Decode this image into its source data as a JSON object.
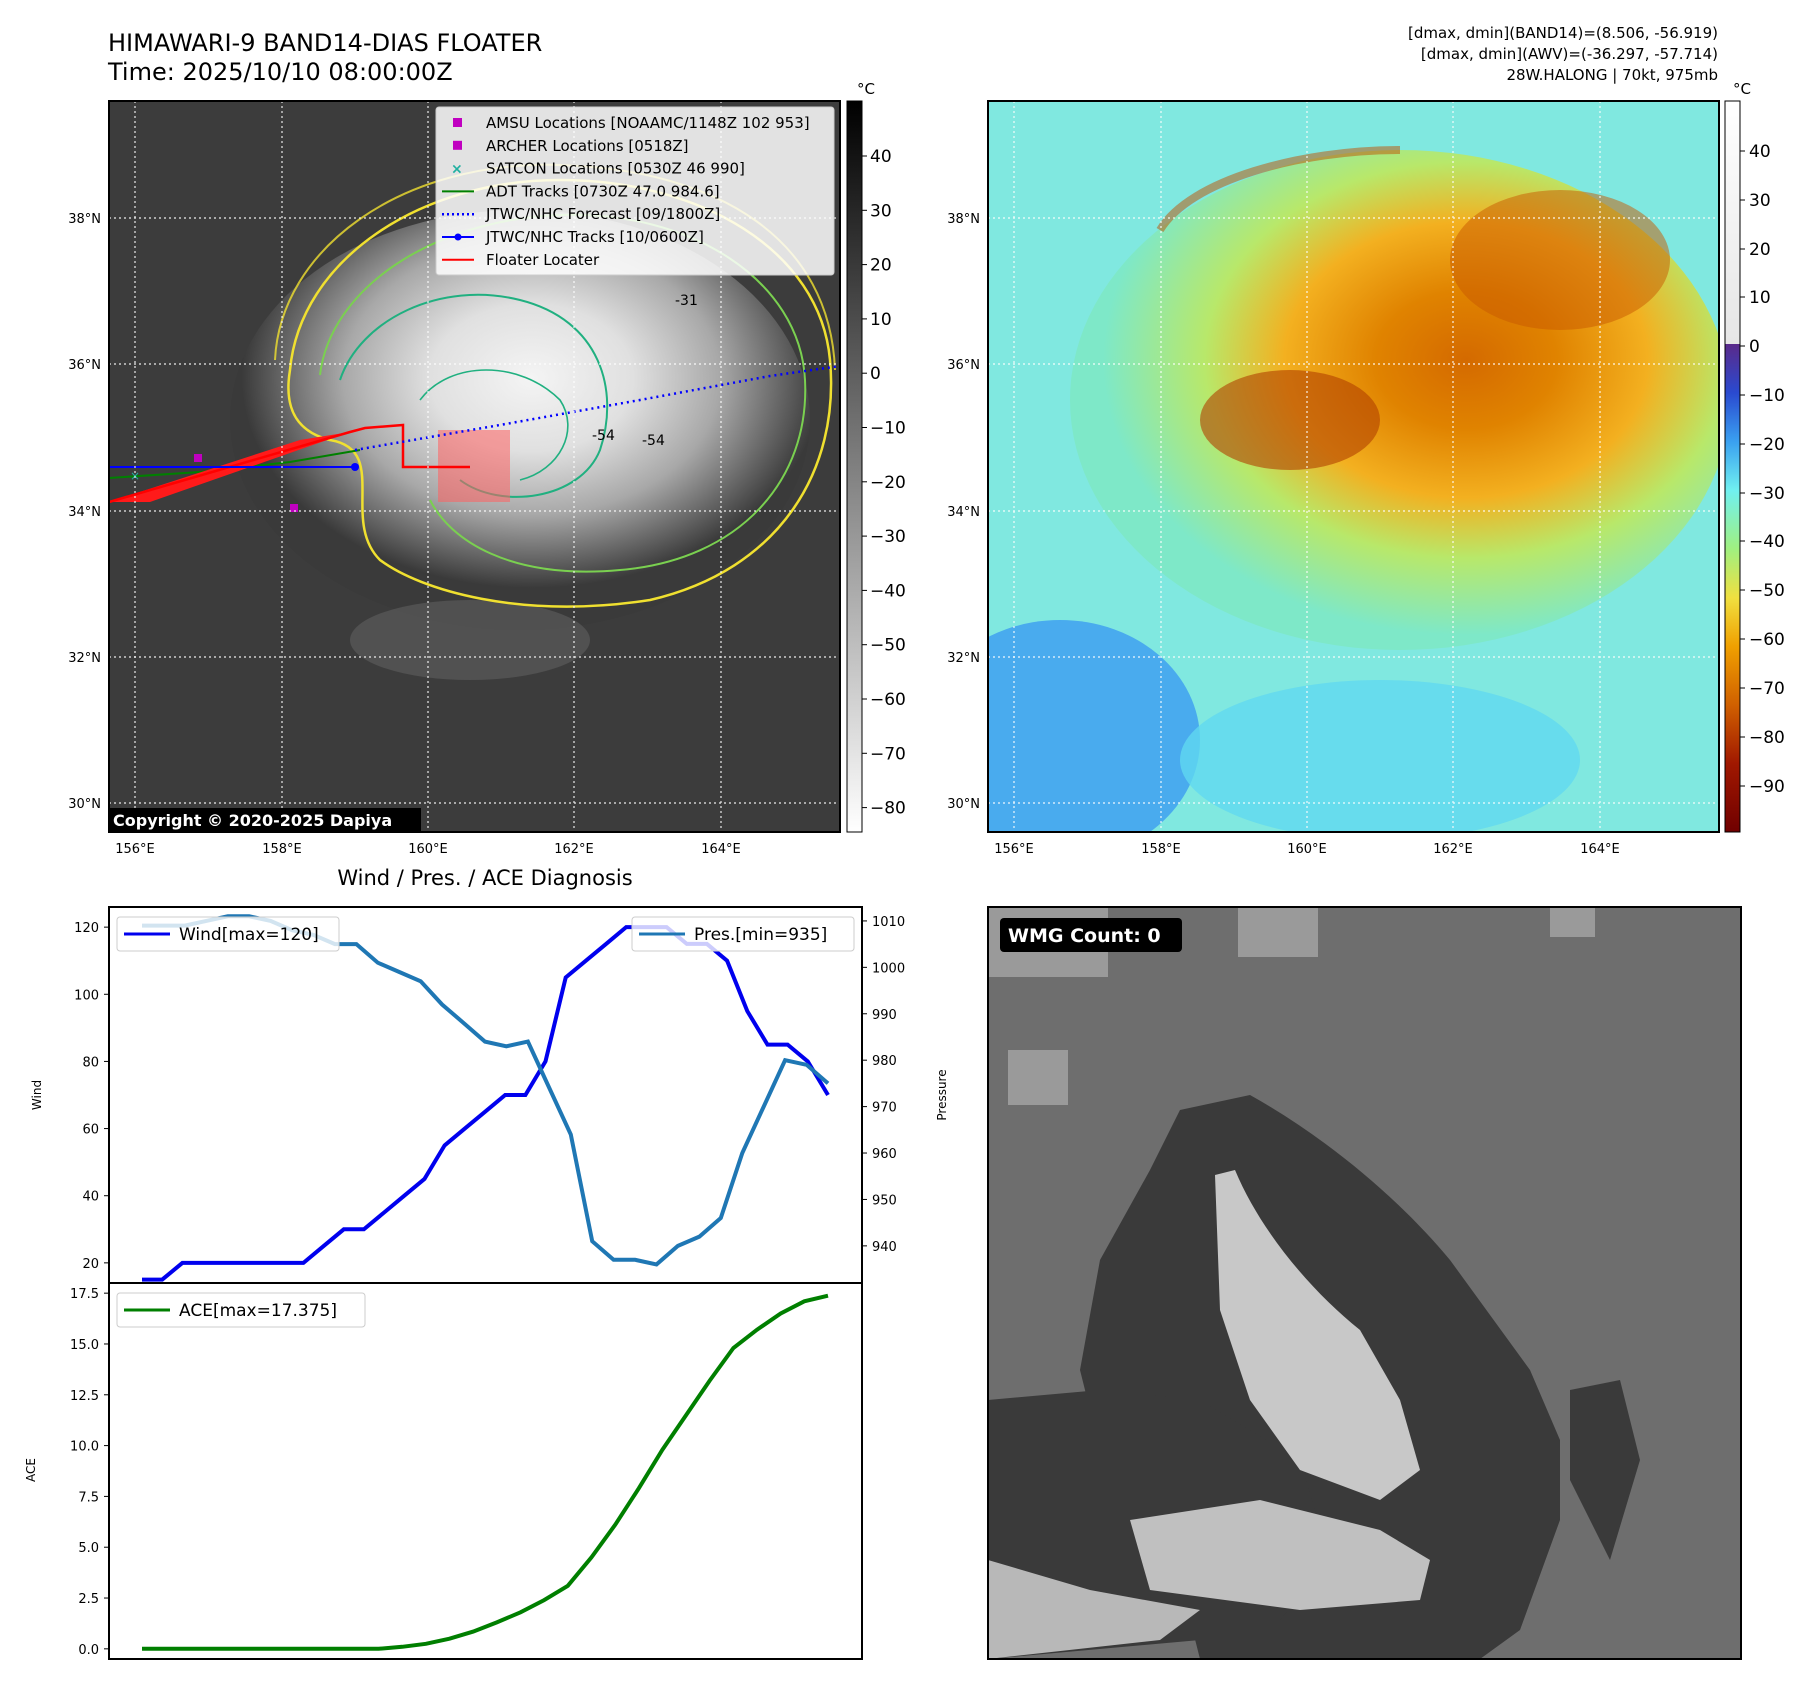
{
  "header": {
    "title_line1": "HIMAWARI-9 BAND14-DIAS FLOATER",
    "title_line2": "Time: 2025/10/10 08:00:00Z",
    "info_line1": "[dmax, dmin](BAND14)=(8.506, -56.919)",
    "info_line2": "[dmax, dmin](AWV)=(-36.297, -57.714)",
    "info_line3": "28W.HALONG | 70kt, 975mb"
  },
  "map": {
    "lat_labels": [
      "38°N",
      "36°N",
      "34°N",
      "32°N",
      "30°N"
    ],
    "lon_labels": [
      "156°E",
      "158°E",
      "160°E",
      "162°E",
      "164°E"
    ],
    "copyright": "Copyright © 2020-2025 Dapiya",
    "contour_labels": [
      "-31",
      "-54",
      "-54"
    ],
    "legend": [
      {
        "label": "AMSU Locations [NOAAMC/1148Z 102 953]",
        "color": "#c000c0",
        "marker": "square"
      },
      {
        "label": "ARCHER Locations [0518Z]",
        "color": "#c000c0",
        "marker": "square"
      },
      {
        "label": "SATCON Locations [0530Z 46 990]",
        "color": "#20b0a0",
        "marker": "x"
      },
      {
        "label": "ADT Tracks [0730Z 47.0 984.6]",
        "color": "#008000",
        "marker": "line"
      },
      {
        "label": "JTWC/NHC Forecast [09/1800Z]",
        "color": "#0000ff",
        "marker": "dotted"
      },
      {
        "label": "JTWC/NHC Tracks [10/0600Z]",
        "color": "#0000ff",
        "marker": "line-dot"
      },
      {
        "label": "Floater Locater",
        "color": "#ff0000",
        "marker": "line"
      }
    ]
  },
  "colorbar_gray": {
    "unit": "°C",
    "ticks": [
      "40",
      "30",
      "20",
      "10",
      "0",
      "−10",
      "−20",
      "−30",
      "−40",
      "−50",
      "−60",
      "−70",
      "−80"
    ]
  },
  "colorbar_awv": {
    "unit": "°C",
    "ticks": [
      "40",
      "30",
      "20",
      "10",
      "0",
      "−10",
      "−20",
      "−30",
      "−40",
      "−50",
      "−60",
      "−70",
      "−80",
      "−90"
    ]
  },
  "diagnosis": {
    "title": "Wind / Pres. / ACE Diagnosis"
  },
  "wmg": {
    "label": "WMG Count: 0"
  },
  "chart_data": [
    {
      "type": "line",
      "title": "Wind / Pres. / ACE Diagnosis",
      "ylabel": "Wind",
      "y2label": "Pressure",
      "ylim": [
        14,
        126
      ],
      "y2lim": [
        932,
        1013
      ],
      "yticks": [
        20,
        40,
        60,
        80,
        100,
        120
      ],
      "y2ticks": [
        940,
        950,
        960,
        970,
        980,
        990,
        1000,
        1010
      ],
      "series": [
        {
          "name": "Wind[max=120]",
          "axis": "left",
          "color": "#0000ee",
          "values": [
            15,
            15,
            20,
            20,
            20,
            20,
            20,
            20,
            20,
            25,
            30,
            30,
            35,
            40,
            45,
            55,
            60,
            65,
            70,
            70,
            80,
            105,
            110,
            115,
            120,
            120,
            120,
            115,
            115,
            110,
            95,
            85,
            85,
            80,
            70
          ]
        },
        {
          "name": "Pres.[min=935]",
          "axis": "right",
          "color": "#1f77b4",
          "values": [
            1009,
            1009,
            1009,
            1010,
            1011,
            1011,
            1010,
            1008,
            1007,
            1005,
            1005,
            1001,
            999,
            997,
            992,
            988,
            984,
            983,
            984,
            974,
            964,
            941,
            937,
            937,
            936,
            940,
            942,
            946,
            960,
            970,
            980,
            979,
            975
          ]
        }
      ]
    },
    {
      "type": "line",
      "ylabel": "ACE",
      "ylim": [
        -0.5,
        18
      ],
      "yticks": [
        "0.0",
        "2.5",
        "5.0",
        "7.5",
        "10.0",
        "12.5",
        "15.0",
        "17.5"
      ],
      "series": [
        {
          "name": "ACE[max=17.375]",
          "color": "#007f00",
          "values": [
            0,
            0,
            0,
            0,
            0,
            0,
            0,
            0,
            0,
            0,
            0,
            0.1,
            0.25,
            0.5,
            0.85,
            1.3,
            1.8,
            2.4,
            3.1,
            4.5,
            6.1,
            7.9,
            9.8,
            11.5,
            13.2,
            14.8,
            15.7,
            16.5,
            17.1,
            17.375
          ]
        }
      ]
    }
  ]
}
